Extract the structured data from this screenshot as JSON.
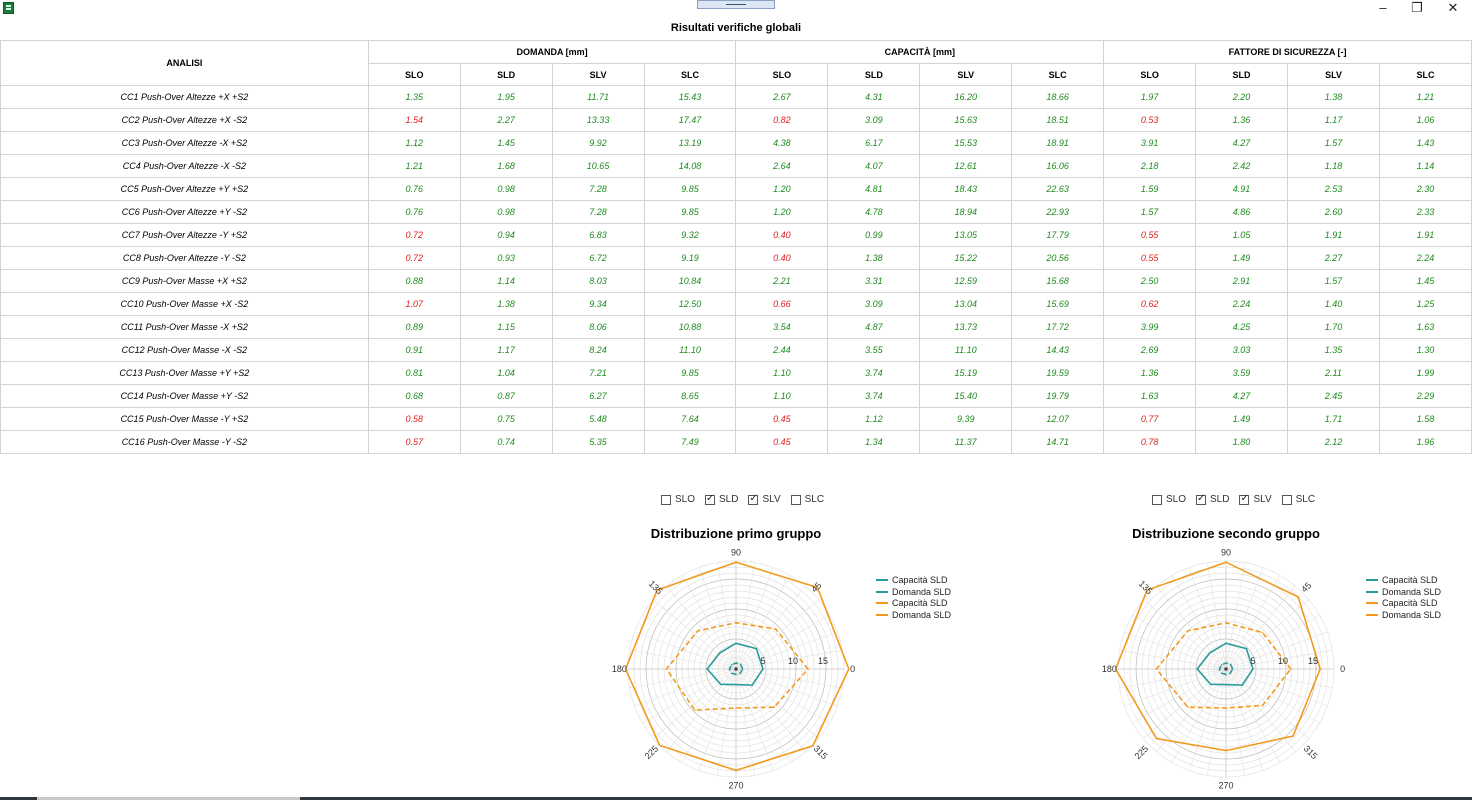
{
  "window": {
    "minimize": "–",
    "restore": "❐",
    "close": "✕"
  },
  "page_title": "Risultati verifiche globali",
  "table": {
    "analisi_header": "ANALISI",
    "groups": [
      "DOMANDA [mm]",
      "CAPACITÀ [mm]",
      "FATTORE DI SICUREZZA [-]"
    ],
    "subheaders": [
      "SLO",
      "SLD",
      "SLV",
      "SLC",
      "SLO",
      "SLD",
      "SLV",
      "SLC",
      "SLO",
      "SLD",
      "SLV",
      "SLC"
    ],
    "colors": {
      "ok": "#1f8a1f",
      "ko": "#e02020"
    },
    "rows": [
      {
        "name": "CC1 Push-Over Altezze +X +S2",
        "values": [
          "1.35",
          "1.95",
          "11.71",
          "15.43",
          "2.67",
          "4.31",
          "16.20",
          "18.66",
          "1.97",
          "2.20",
          "1.38",
          "1.21"
        ],
        "fail": []
      },
      {
        "name": "CC2 Push-Over Altezze +X -S2",
        "values": [
          "1.54",
          "2.27",
          "13.33",
          "17.47",
          "0.82",
          "3.09",
          "15.63",
          "18.51",
          "0.53",
          "1.36",
          "1.17",
          "1.06"
        ],
        "fail": [
          0,
          4,
          8
        ]
      },
      {
        "name": "CC3 Push-Over Altezze -X +S2",
        "values": [
          "1.12",
          "1.45",
          "9.92",
          "13.19",
          "4.38",
          "6.17",
          "15.53",
          "18.91",
          "3.91",
          "4.27",
          "1.57",
          "1.43"
        ],
        "fail": []
      },
      {
        "name": "CC4 Push-Over Altezze -X -S2",
        "values": [
          "1.21",
          "1.68",
          "10.65",
          "14.08",
          "2.64",
          "4.07",
          "12.61",
          "16.06",
          "2.18",
          "2.42",
          "1.18",
          "1.14"
        ],
        "fail": []
      },
      {
        "name": "CC5 Push-Over Altezze +Y +S2",
        "values": [
          "0.76",
          "0.98",
          "7.28",
          "9.85",
          "1.20",
          "4.81",
          "18.43",
          "22.63",
          "1.59",
          "4.91",
          "2.53",
          "2.30"
        ],
        "fail": []
      },
      {
        "name": "CC6 Push-Over Altezze +Y -S2",
        "values": [
          "0.76",
          "0.98",
          "7.28",
          "9.85",
          "1.20",
          "4.78",
          "18.94",
          "22.93",
          "1.57",
          "4.86",
          "2.60",
          "2.33"
        ],
        "fail": []
      },
      {
        "name": "CC7 Push-Over Altezze -Y +S2",
        "values": [
          "0.72",
          "0.94",
          "6.83",
          "9.32",
          "0.40",
          "0.99",
          "13.05",
          "17.79",
          "0.55",
          "1.05",
          "1.91",
          "1.91"
        ],
        "fail": [
          0,
          4,
          8
        ]
      },
      {
        "name": "CC8 Push-Over Altezze -Y -S2",
        "values": [
          "0.72",
          "0.93",
          "6.72",
          "9.19",
          "0.40",
          "1.38",
          "15.22",
          "20.56",
          "0.55",
          "1.49",
          "2.27",
          "2.24"
        ],
        "fail": [
          0,
          4,
          8
        ]
      },
      {
        "name": "CC9 Push-Over Masse +X +S2",
        "values": [
          "0.88",
          "1.14",
          "8.03",
          "10.84",
          "2.21",
          "3.31",
          "12.59",
          "15.68",
          "2.50",
          "2.91",
          "1.57",
          "1.45"
        ],
        "fail": []
      },
      {
        "name": "CC10 Push-Over Masse +X -S2",
        "values": [
          "1.07",
          "1.38",
          "9.34",
          "12.50",
          "0.66",
          "3.09",
          "13.04",
          "15.69",
          "0.62",
          "2.24",
          "1.40",
          "1.25"
        ],
        "fail": [
          0,
          4,
          8
        ]
      },
      {
        "name": "CC11 Push-Over Masse -X +S2",
        "values": [
          "0.89",
          "1.15",
          "8.06",
          "10.88",
          "3.54",
          "4.87",
          "13.73",
          "17.72",
          "3.99",
          "4.25",
          "1.70",
          "1.63"
        ],
        "fail": []
      },
      {
        "name": "CC12 Push-Over Masse -X -S2",
        "values": [
          "0.91",
          "1.17",
          "8.24",
          "11.10",
          "2.44",
          "3.55",
          "11.10",
          "14.43",
          "2.69",
          "3.03",
          "1.35",
          "1.30"
        ],
        "fail": []
      },
      {
        "name": "CC13 Push-Over Masse +Y +S2",
        "values": [
          "0.81",
          "1.04",
          "7.21",
          "9.85",
          "1.10",
          "3.74",
          "15.19",
          "19.59",
          "1.36",
          "3.59",
          "2.11",
          "1.99"
        ],
        "fail": []
      },
      {
        "name": "CC14 Push-Over Masse +Y -S2",
        "values": [
          "0.68",
          "0.87",
          "6.27",
          "8.65",
          "1.10",
          "3.74",
          "15.40",
          "19.79",
          "1.63",
          "4.27",
          "2.45",
          "2.29"
        ],
        "fail": []
      },
      {
        "name": "CC15 Push-Over Masse -Y +S2",
        "values": [
          "0.58",
          "0.75",
          "5.48",
          "7.64",
          "0.45",
          "1.12",
          "9.39",
          "12.07",
          "0.77",
          "1.49",
          "1.71",
          "1.58"
        ],
        "fail": [
          0,
          4,
          8
        ]
      },
      {
        "name": "CC16 Push-Over Masse -Y -S2",
        "values": [
          "0.57",
          "0.74",
          "5.35",
          "7.49",
          "0.45",
          "1.34",
          "11.37",
          "14.71",
          "0.78",
          "1.80",
          "2.12",
          "1.96"
        ],
        "fail": [
          0,
          4,
          8
        ]
      }
    ]
  },
  "charts": [
    {
      "title": "Distribuzione primo gruppo",
      "checkboxes": [
        {
          "label": "SLO",
          "checked": false
        },
        {
          "label": "SLD",
          "checked": true
        },
        {
          "label": "SLV",
          "checked": true
        },
        {
          "label": "SLC",
          "checked": false
        }
      ],
      "legend": [
        "Capacità SLD",
        "Domanda SLD",
        "Capacità SLD",
        "Domanda SLD"
      ]
    },
    {
      "title": "Distribuzione secondo gruppo",
      "checkboxes": [
        {
          "label": "SLO",
          "checked": false
        },
        {
          "label": "SLD",
          "checked": true
        },
        {
          "label": "SLV",
          "checked": true
        },
        {
          "label": "SLC",
          "checked": false
        }
      ],
      "legend": [
        "Capacità SLD",
        "Domanda SLD",
        "Capacità SLD",
        "Domanda SLD"
      ]
    }
  ],
  "chart_data": [
    {
      "type": "polar",
      "title": "Distribuzione primo gruppo",
      "angle_ticks": [
        "0",
        "45",
        "90",
        "135",
        "180",
        "225",
        "270",
        "315"
      ],
      "radial_ticks": [
        "5",
        "10",
        "15"
      ],
      "rmax": 18,
      "colors": {
        "teal": "#2a9b9b",
        "orange": "#f39a1e"
      },
      "series": [
        {
          "name": "Capacità SLD",
          "color": "#2a9b9b",
          "dash": false,
          "angles": [
            0,
            45,
            90,
            135,
            180,
            225,
            270,
            315
          ],
          "values": [
            4.5,
            4.8,
            4.3,
            3.8,
            4.8,
            3.6,
            2.6,
            3.8
          ]
        },
        {
          "name": "Domanda SLD",
          "color": "#2a9b9b",
          "dash": true,
          "angles": [
            0,
            45,
            90,
            135,
            180,
            225,
            270,
            315
          ],
          "values": [
            1.1,
            1.1,
            1.0,
            1.0,
            1.1,
            1.0,
            0.9,
            1.0
          ]
        },
        {
          "name": "Capacità SLD",
          "color": "#f39a1e",
          "dash": false,
          "angles": [
            0,
            45,
            90,
            135,
            180,
            225,
            270,
            315
          ],
          "values": [
            18.8,
            19.2,
            17.8,
            18.6,
            18.4,
            18.0,
            16.9,
            18.1
          ]
        },
        {
          "name": "Domanda SLD",
          "color": "#f39a1e",
          "dash": true,
          "angles": [
            0,
            45,
            90,
            135,
            180,
            225,
            270,
            315
          ],
          "values": [
            12.0,
            9.4,
            7.7,
            9.0,
            11.6,
            9.7,
            6.5,
            9.0
          ]
        }
      ]
    },
    {
      "type": "polar",
      "title": "Distribuzione secondo gruppo",
      "angle_ticks": [
        "0",
        "45",
        "90",
        "135",
        "180",
        "225",
        "270",
        "315"
      ],
      "radial_ticks": [
        "5",
        "10",
        "15"
      ],
      "rmax": 18,
      "colors": {
        "teal": "#2a9b9b",
        "orange": "#f39a1e"
      },
      "series": [
        {
          "name": "Capacità SLD",
          "color": "#2a9b9b",
          "dash": false,
          "angles": [
            0,
            45,
            90,
            135,
            180,
            225,
            270,
            315
          ],
          "values": [
            4.5,
            4.8,
            4.3,
            3.8,
            4.8,
            3.6,
            2.6,
            3.8
          ]
        },
        {
          "name": "Domanda SLD",
          "color": "#2a9b9b",
          "dash": true,
          "angles": [
            0,
            45,
            90,
            135,
            180,
            225,
            270,
            315
          ],
          "values": [
            1.1,
            1.1,
            1.0,
            1.0,
            1.1,
            1.0,
            0.9,
            1.0
          ]
        },
        {
          "name": "Capacità SLD",
          "color": "#f39a1e",
          "dash": false,
          "angles": [
            0,
            45,
            90,
            135,
            180,
            225,
            270,
            315
          ],
          "values": [
            15.7,
            17.0,
            17.8,
            18.6,
            18.4,
            16.4,
            13.6,
            15.8
          ]
        },
        {
          "name": "Domanda SLD",
          "color": "#f39a1e",
          "dash": true,
          "angles": [
            0,
            45,
            90,
            135,
            180,
            225,
            270,
            315
          ],
          "values": [
            10.8,
            8.6,
            7.7,
            9.0,
            11.6,
            9.0,
            6.5,
            8.6
          ]
        }
      ]
    }
  ]
}
